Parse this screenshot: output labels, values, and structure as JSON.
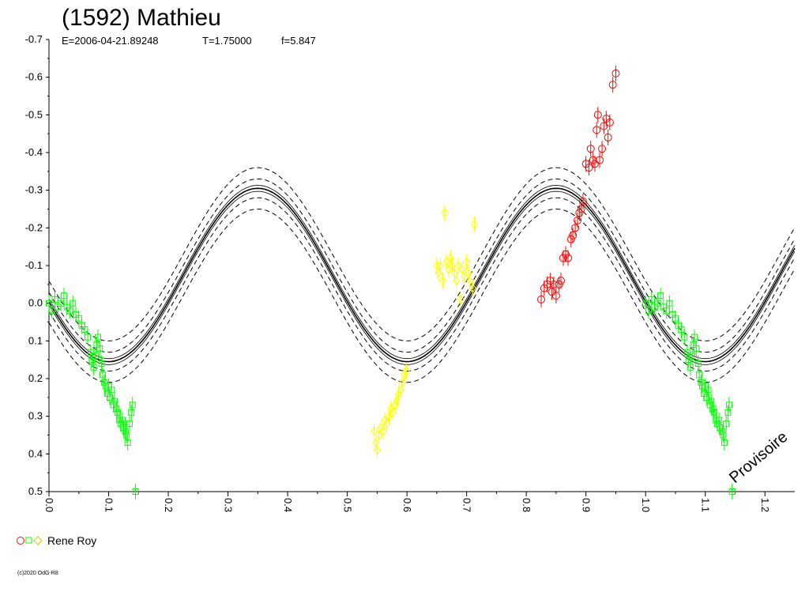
{
  "chart_data": {
    "type": "scatter",
    "title": "(1592) Mathieu",
    "subtitle": {
      "epoch": "E=2006-04-21.89248",
      "period": "T=1.75000",
      "f": "f=5.847"
    },
    "xlim": [
      0.0,
      1.25
    ],
    "ylim": [
      -0.7,
      0.5
    ],
    "y_inverted": true,
    "x_ticks": [
      "0.0",
      "0.1",
      "0.2",
      "0.3",
      "0.4",
      "0.5",
      "0.6",
      "0.7",
      "0.8",
      "0.9",
      "1.0",
      "1.1",
      "1.2"
    ],
    "y_ticks": [
      "-0.7",
      "-0.6",
      "-0.5",
      "-0.4",
      "-0.3",
      "-0.2",
      "-0.1",
      "0.0",
      "0.1",
      "0.2",
      "0.3",
      "0.4",
      "0.5"
    ],
    "grid": false,
    "legend_position": "bottom-left",
    "colors": {
      "red": "#ff0000",
      "green": "#00ff00",
      "yellow": "#ffff00",
      "curve": "#000000"
    },
    "fit_curve": {
      "period_cycles_in_phase": 2,
      "mean": -0.075,
      "amplitude": 0.23,
      "peak_phase": 0.35,
      "dashed_offsets": [
        -0.025,
        0.025,
        -0.055,
        0.055
      ],
      "solid_offsets": [
        -0.008,
        0.008
      ]
    },
    "annotation": "Provisoire",
    "legend": {
      "label": "Rene Roy",
      "markers": [
        "circle-red",
        "square-green",
        "diamond-yellow"
      ]
    },
    "copyright": "(c)2020 OdG-R8",
    "series": [
      {
        "marker": "square",
        "color": "#00ff00",
        "points": [
          [
            0.0,
            0.0
          ],
          [
            0.005,
            0.02
          ],
          [
            0.01,
            -0.01
          ],
          [
            0.015,
            0.01
          ],
          [
            0.02,
            0.0
          ],
          [
            0.025,
            -0.02
          ],
          [
            0.03,
            0.01
          ],
          [
            0.035,
            0.02
          ],
          [
            0.04,
            0.0
          ],
          [
            0.045,
            0.03
          ],
          [
            0.05,
            0.04
          ],
          [
            0.055,
            0.06
          ],
          [
            0.06,
            0.07
          ],
          [
            0.065,
            0.09
          ],
          [
            0.07,
            0.13
          ],
          [
            0.072,
            0.15
          ],
          [
            0.075,
            0.17
          ],
          [
            0.078,
            0.14
          ],
          [
            0.08,
            0.11
          ],
          [
            0.082,
            0.09
          ],
          [
            0.085,
            0.12
          ],
          [
            0.088,
            0.16
          ],
          [
            0.09,
            0.19
          ],
          [
            0.093,
            0.21
          ],
          [
            0.095,
            0.22
          ],
          [
            0.098,
            0.24
          ],
          [
            0.1,
            0.22
          ],
          [
            0.102,
            0.25
          ],
          [
            0.105,
            0.23
          ],
          [
            0.108,
            0.27
          ],
          [
            0.11,
            0.26
          ],
          [
            0.113,
            0.28
          ],
          [
            0.115,
            0.29
          ],
          [
            0.118,
            0.31
          ],
          [
            0.12,
            0.32
          ],
          [
            0.123,
            0.31
          ],
          [
            0.125,
            0.33
          ],
          [
            0.128,
            0.34
          ],
          [
            0.13,
            0.35
          ],
          [
            0.132,
            0.37
          ],
          [
            0.135,
            0.32
          ],
          [
            0.138,
            0.29
          ],
          [
            0.14,
            0.27
          ],
          [
            0.145,
            0.5
          ]
        ]
      },
      {
        "marker": "diamond",
        "color": "#ffff00",
        "points": [
          [
            0.545,
            0.34
          ],
          [
            0.548,
            0.37
          ],
          [
            0.55,
            0.39
          ],
          [
            0.553,
            0.35
          ],
          [
            0.556,
            0.33
          ],
          [
            0.56,
            0.34
          ],
          [
            0.563,
            0.31
          ],
          [
            0.566,
            0.32
          ],
          [
            0.57,
            0.3
          ],
          [
            0.573,
            0.28
          ],
          [
            0.576,
            0.29
          ],
          [
            0.58,
            0.27
          ],
          [
            0.583,
            0.26
          ],
          [
            0.586,
            0.24
          ],
          [
            0.59,
            0.23
          ],
          [
            0.593,
            0.21
          ],
          [
            0.596,
            0.19
          ],
          [
            0.599,
            0.18
          ],
          [
            0.65,
            -0.1
          ],
          [
            0.653,
            -0.08
          ],
          [
            0.656,
            -0.1
          ],
          [
            0.66,
            -0.06
          ],
          [
            0.663,
            -0.24
          ],
          [
            0.666,
            -0.11
          ],
          [
            0.67,
            -0.09
          ],
          [
            0.673,
            -0.12
          ],
          [
            0.676,
            -0.1
          ],
          [
            0.68,
            -0.08
          ],
          [
            0.683,
            -0.06
          ],
          [
            0.686,
            -0.1
          ],
          [
            0.69,
            -0.01
          ],
          [
            0.693,
            -0.09
          ],
          [
            0.696,
            -0.07
          ],
          [
            0.7,
            -0.11
          ],
          [
            0.703,
            -0.08
          ],
          [
            0.706,
            -0.06
          ],
          [
            0.71,
            -0.04
          ],
          [
            0.713,
            -0.21
          ]
        ]
      },
      {
        "marker": "circle",
        "color": "#ff0000",
        "points": [
          [
            0.825,
            -0.01
          ],
          [
            0.83,
            -0.04
          ],
          [
            0.835,
            -0.05
          ],
          [
            0.84,
            -0.06
          ],
          [
            0.843,
            -0.03
          ],
          [
            0.846,
            -0.05
          ],
          [
            0.85,
            -0.02
          ],
          [
            0.855,
            -0.05
          ],
          [
            0.858,
            -0.06
          ],
          [
            0.862,
            -0.12
          ],
          [
            0.866,
            -0.13
          ],
          [
            0.87,
            -0.12
          ],
          [
            0.875,
            -0.17
          ],
          [
            0.878,
            -0.18
          ],
          [
            0.882,
            -0.2
          ],
          [
            0.886,
            -0.22
          ],
          [
            0.889,
            -0.24
          ],
          [
            0.892,
            -0.25
          ],
          [
            0.895,
            -0.27
          ],
          [
            0.9,
            -0.37
          ],
          [
            0.905,
            -0.36
          ],
          [
            0.908,
            -0.41
          ],
          [
            0.912,
            -0.38
          ],
          [
            0.915,
            -0.37
          ],
          [
            0.918,
            -0.46
          ],
          [
            0.92,
            -0.5
          ],
          [
            0.923,
            -0.38
          ],
          [
            0.927,
            -0.41
          ],
          [
            0.93,
            -0.47
          ],
          [
            0.934,
            -0.49
          ],
          [
            0.937,
            -0.44
          ],
          [
            0.94,
            -0.48
          ],
          [
            0.945,
            -0.58
          ],
          [
            0.95,
            -0.61
          ]
        ]
      }
    ]
  }
}
